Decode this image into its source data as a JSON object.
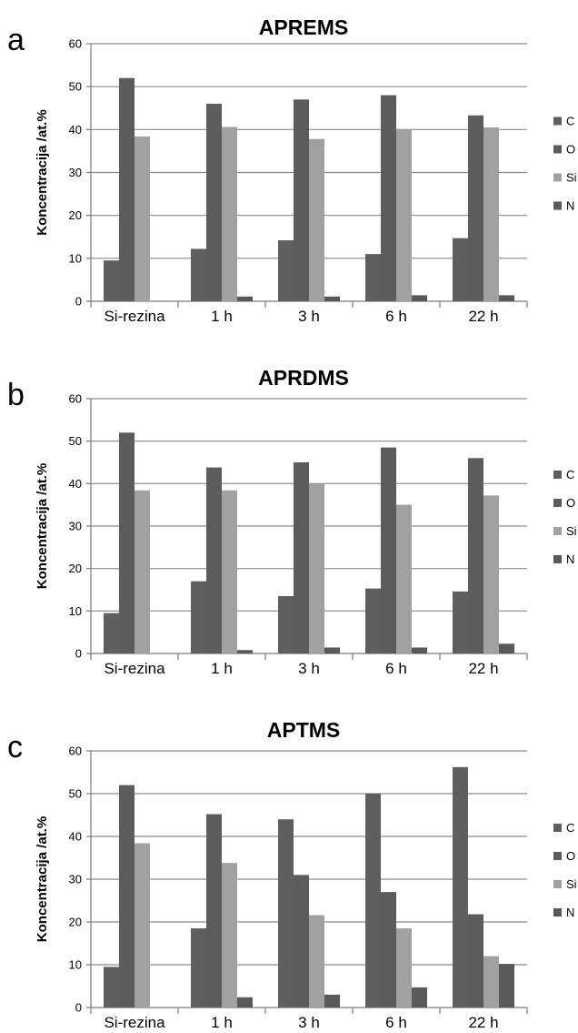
{
  "chart_data": [
    {
      "type": "bar",
      "panel": "a",
      "title": "APREMS",
      "ylabel": "Koncentracija /at.%",
      "xlabel": "",
      "ylim": [
        0,
        60
      ],
      "yticks": [
        0,
        10,
        20,
        30,
        40,
        50,
        60
      ],
      "categories": [
        "Si-rezina",
        "1 h",
        "3 h",
        "6 h",
        "22 h"
      ],
      "series": [
        {
          "name": "C",
          "color": "#5f5f5f",
          "values": [
            9.5,
            12.2,
            14.2,
            11.0,
            14.7
          ]
        },
        {
          "name": "O",
          "color": "#5c5c5c",
          "values": [
            52.0,
            46.0,
            47.0,
            48.0,
            43.3
          ]
        },
        {
          "name": "Si",
          "color": "#a1a1a1",
          "values": [
            38.4,
            40.6,
            37.8,
            40.0,
            40.5
          ]
        },
        {
          "name": "N",
          "color": "#595959",
          "values": [
            0.0,
            1.1,
            1.1,
            1.4,
            1.4
          ]
        }
      ],
      "grid": true,
      "legend": "right"
    },
    {
      "type": "bar",
      "panel": "b",
      "title": "APRDMS",
      "ylabel": "Koncentracija /at.%",
      "xlabel": "",
      "ylim": [
        0,
        60
      ],
      "yticks": [
        0,
        10,
        20,
        30,
        40,
        50,
        60
      ],
      "categories": [
        "Si-rezina",
        "1 h",
        "3 h",
        "6 h",
        "22 h"
      ],
      "series": [
        {
          "name": "C",
          "color": "#5f5f5f",
          "values": [
            9.5,
            17.0,
            13.5,
            15.3,
            14.6
          ]
        },
        {
          "name": "O",
          "color": "#5c5c5c",
          "values": [
            52.0,
            43.8,
            45.0,
            48.5,
            46.0
          ]
        },
        {
          "name": "Si",
          "color": "#a1a1a1",
          "values": [
            38.4,
            38.4,
            40.0,
            35.0,
            37.2
          ]
        },
        {
          "name": "N",
          "color": "#595959",
          "values": [
            0.0,
            0.8,
            1.4,
            1.4,
            2.3
          ]
        }
      ],
      "grid": true,
      "legend": "right"
    },
    {
      "type": "bar",
      "panel": "c",
      "title": "APTMS",
      "ylabel": "Koncentracija /at.%",
      "xlabel": "",
      "ylim": [
        0,
        60
      ],
      "yticks": [
        0,
        10,
        20,
        30,
        40,
        50,
        60
      ],
      "categories": [
        "Si-rezina",
        "1 h",
        "3 h",
        "6 h",
        "22 h"
      ],
      "series": [
        {
          "name": "C",
          "color": "#5f5f5f",
          "values": [
            9.5,
            18.5,
            44.0,
            50.0,
            56.2
          ]
        },
        {
          "name": "O",
          "color": "#5c5c5c",
          "values": [
            52.0,
            45.2,
            31.0,
            27.0,
            21.8
          ]
        },
        {
          "name": "Si",
          "color": "#a1a1a1",
          "values": [
            38.4,
            33.8,
            21.6,
            18.5,
            12.0
          ]
        },
        {
          "name": "N",
          "color": "#595959",
          "values": [
            0.0,
            2.4,
            3.0,
            4.7,
            10.2
          ]
        }
      ],
      "grid": true,
      "legend": "right"
    }
  ]
}
